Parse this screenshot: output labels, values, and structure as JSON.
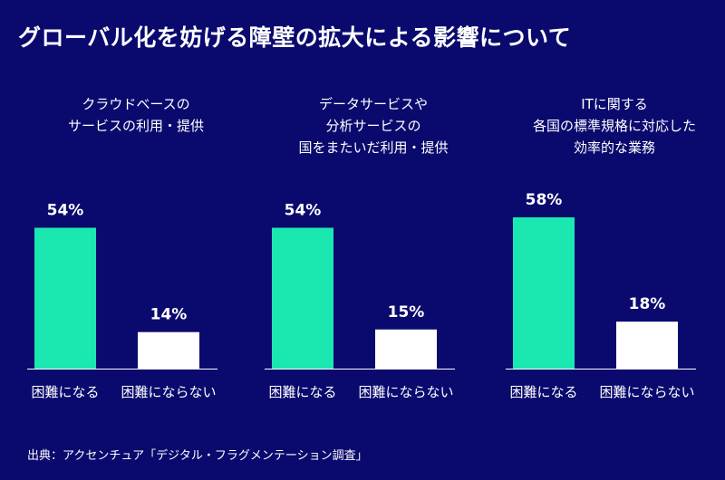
{
  "title": "グローバル化を妨げる障壁の拡大による影響について",
  "source": "出典：アクセンチュア「デジタル・フラグメンテーション調査」",
  "colors": {
    "background": "#0a0a6e",
    "bar_difficult": "#1ae8b0",
    "bar_not_difficult": "#ffffff",
    "text": "#ffffff"
  },
  "chart_data": [
    {
      "type": "bar",
      "title_lines": [
        "クラウドベースの",
        "サービスの利用・提供"
      ],
      "categories": [
        "困難になる",
        "困難にならない"
      ],
      "values": [
        54,
        14
      ],
      "labels": [
        "54%",
        "14%"
      ],
      "ylim": [
        0,
        100
      ]
    },
    {
      "type": "bar",
      "title_lines": [
        "データサービスや",
        "分析サービスの",
        "国をまたいだ利用・提供"
      ],
      "categories": [
        "困難になる",
        "困難にならない"
      ],
      "values": [
        54,
        15
      ],
      "labels": [
        "54%",
        "15%"
      ],
      "ylim": [
        0,
        100
      ]
    },
    {
      "type": "bar",
      "title_lines": [
        "ITに関する",
        "各国の標準規格に対応した",
        "効率的な業務"
      ],
      "categories": [
        "困難になる",
        "困難にならない"
      ],
      "values": [
        58,
        18
      ],
      "labels": [
        "58%",
        "18%"
      ],
      "ylim": [
        0,
        100
      ]
    }
  ]
}
